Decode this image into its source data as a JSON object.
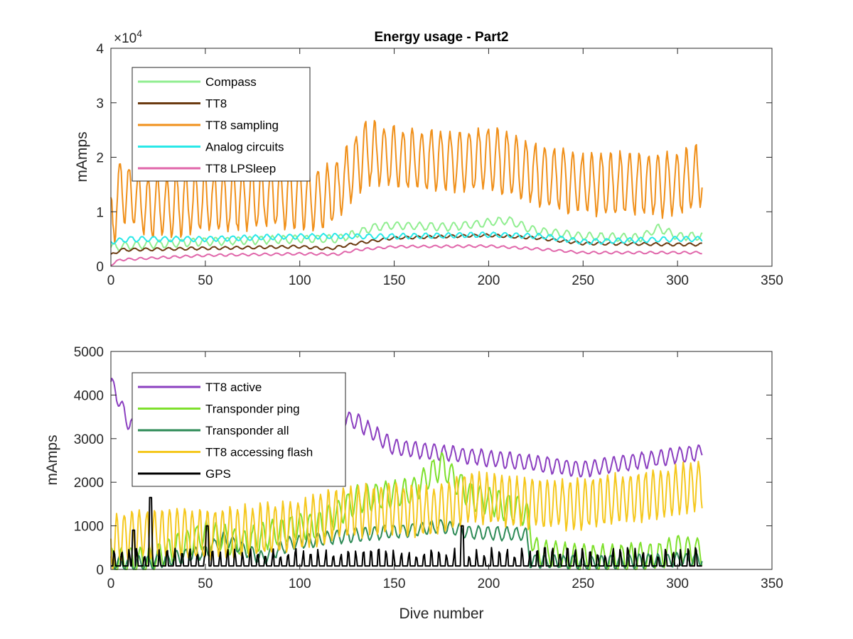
{
  "chart_data": [
    {
      "type": "line",
      "title": "Energy usage - Part2",
      "xlabel": "",
      "ylabel": "mAmps",
      "y_exponent_label": "×10",
      "y_exponent_power": "4",
      "xlim": [
        0,
        350
      ],
      "ylim": [
        0,
        40000
      ],
      "xticks": [
        "0",
        "50",
        "100",
        "150",
        "200",
        "250",
        "300",
        "350"
      ],
      "yticks": [
        "0",
        "1",
        "2",
        "3",
        "4"
      ],
      "legend_position": "upper-left",
      "series": [
        {
          "name": "Compass",
          "color": "#90ee90",
          "base": [
            [
              0,
              3500
            ],
            [
              10,
              3800
            ],
            [
              50,
              4500
            ],
            [
              100,
              5000
            ],
            [
              120,
              5000
            ],
            [
              130,
              6000
            ],
            [
              140,
              7200
            ],
            [
              150,
              7500
            ],
            [
              180,
              7200
            ],
            [
              200,
              8000
            ],
            [
              210,
              8500
            ],
            [
              225,
              6500
            ],
            [
              250,
              5500
            ],
            [
              280,
              5200
            ],
            [
              290,
              7000
            ],
            [
              300,
              5500
            ],
            [
              313,
              5500
            ]
          ],
          "amp": 700,
          "period": 6
        },
        {
          "name": "TT8",
          "color": "#6b3a10",
          "base": [
            [
              0,
              2000
            ],
            [
              5,
              3000
            ],
            [
              50,
              3300
            ],
            [
              100,
              3600
            ],
            [
              115,
              3200
            ],
            [
              120,
              3500
            ],
            [
              130,
              4200
            ],
            [
              150,
              5200
            ],
            [
              200,
              5700
            ],
            [
              225,
              5200
            ],
            [
              250,
              4200
            ],
            [
              300,
              4000
            ],
            [
              313,
              4000
            ]
          ],
          "amp": 250,
          "period": 6
        },
        {
          "name": "TT8 sampling",
          "color": "#f0901a",
          "base": [
            [
              0,
              8000
            ],
            [
              5,
              14000
            ],
            [
              20,
              11000
            ],
            [
              50,
              12000
            ],
            [
              100,
              13000
            ],
            [
              110,
              12000
            ],
            [
              120,
              14000
            ],
            [
              135,
              21000
            ],
            [
              150,
              20000
            ],
            [
              180,
              19000
            ],
            [
              200,
              20000
            ],
            [
              225,
              17000
            ],
            [
              250,
              15000
            ],
            [
              300,
              15000
            ],
            [
              313,
              17000
            ]
          ],
          "amp": 5500,
          "period": 5
        },
        {
          "name": "Analog circuits",
          "color": "#29e8e8",
          "base": [
            [
              0,
              4500
            ],
            [
              10,
              5000
            ],
            [
              50,
              5000
            ],
            [
              100,
              5500
            ],
            [
              120,
              5500
            ],
            [
              130,
              5500
            ],
            [
              150,
              5500
            ],
            [
              200,
              5800
            ],
            [
              230,
              5500
            ],
            [
              250,
              4500
            ],
            [
              300,
              5000
            ],
            [
              313,
              5000
            ]
          ],
          "amp": 450,
          "period": 6
        },
        {
          "name": "TT8 LPSleep",
          "color": "#e066aa",
          "base": [
            [
              0,
              300
            ],
            [
              5,
              1200
            ],
            [
              50,
              2000
            ],
            [
              100,
              2300
            ],
            [
              120,
              2200
            ],
            [
              130,
              3000
            ],
            [
              150,
              3600
            ],
            [
              200,
              3700
            ],
            [
              225,
              3200
            ],
            [
              250,
              2500
            ],
            [
              300,
              2500
            ],
            [
              313,
              2500
            ]
          ],
          "amp": 200,
          "period": 6
        }
      ]
    },
    {
      "type": "line",
      "title": "",
      "xlabel": "Dive number",
      "ylabel": "mAmps",
      "xlim": [
        0,
        350
      ],
      "ylim": [
        0,
        5000
      ],
      "xticks": [
        "0",
        "50",
        "100",
        "150",
        "200",
        "250",
        "300",
        "350"
      ],
      "yticks": [
        "0",
        "1000",
        "2000",
        "3000",
        "4000",
        "5000"
      ],
      "legend_position": "upper-left",
      "series": [
        {
          "name": "TT8 active",
          "color": "#8b3fc0",
          "base": [
            [
              0,
              4300
            ],
            [
              10,
              3300
            ],
            [
              50,
              2950
            ],
            [
              80,
              3000
            ],
            [
              100,
              3300
            ],
            [
              120,
              3500
            ],
            [
              130,
              3400
            ],
            [
              150,
              2800
            ],
            [
              200,
              2550
            ],
            [
              250,
              2300
            ],
            [
              313,
              2700
            ]
          ],
          "amp": 180,
          "period": 5
        },
        {
          "name": "Transponder ping",
          "color": "#7ee02c",
          "base": [
            [
              0,
              200
            ],
            [
              20,
              200
            ],
            [
              50,
              800
            ],
            [
              70,
              600
            ],
            [
              100,
              1000
            ],
            [
              110,
              1000
            ],
            [
              130,
              1600
            ],
            [
              160,
              1800
            ],
            [
              175,
              2400
            ],
            [
              190,
              1700
            ],
            [
              220,
              1300
            ],
            [
              225,
              400
            ],
            [
              250,
              250
            ],
            [
              290,
              300
            ],
            [
              300,
              500
            ],
            [
              313,
              400
            ]
          ],
          "amp": 300,
          "period": 5
        },
        {
          "name": "Transponder all",
          "color": "#2e8b57",
          "base": [
            [
              0,
              150
            ],
            [
              20,
              150
            ],
            [
              50,
              400
            ],
            [
              60,
              700
            ],
            [
              80,
              250
            ],
            [
              95,
              600
            ],
            [
              130,
              800
            ],
            [
              160,
              900
            ],
            [
              175,
              1000
            ],
            [
              190,
              850
            ],
            [
              220,
              800
            ],
            [
              222,
              200
            ],
            [
              250,
              150
            ],
            [
              290,
              200
            ],
            [
              313,
              250
            ]
          ],
          "amp": 150,
          "period": 5
        },
        {
          "name": "TT8 accessing flash",
          "color": "#f5c81e",
          "base": [
            [
              0,
              600
            ],
            [
              10,
              800
            ],
            [
              50,
              800
            ],
            [
              100,
              1000
            ],
            [
              120,
              1300
            ],
            [
              150,
              1400
            ],
            [
              170,
              1300
            ],
            [
              190,
              1700
            ],
            [
              220,
              1500
            ],
            [
              250,
              1500
            ],
            [
              300,
              1800
            ],
            [
              313,
              2000
            ]
          ],
          "amp": 550,
          "period": 4
        },
        {
          "name": "GPS",
          "color": "#000000",
          "base": [
            [
              0,
              100
            ],
            [
              313,
              100
            ]
          ],
          "amp": 0,
          "period": 4
        }
      ]
    }
  ]
}
